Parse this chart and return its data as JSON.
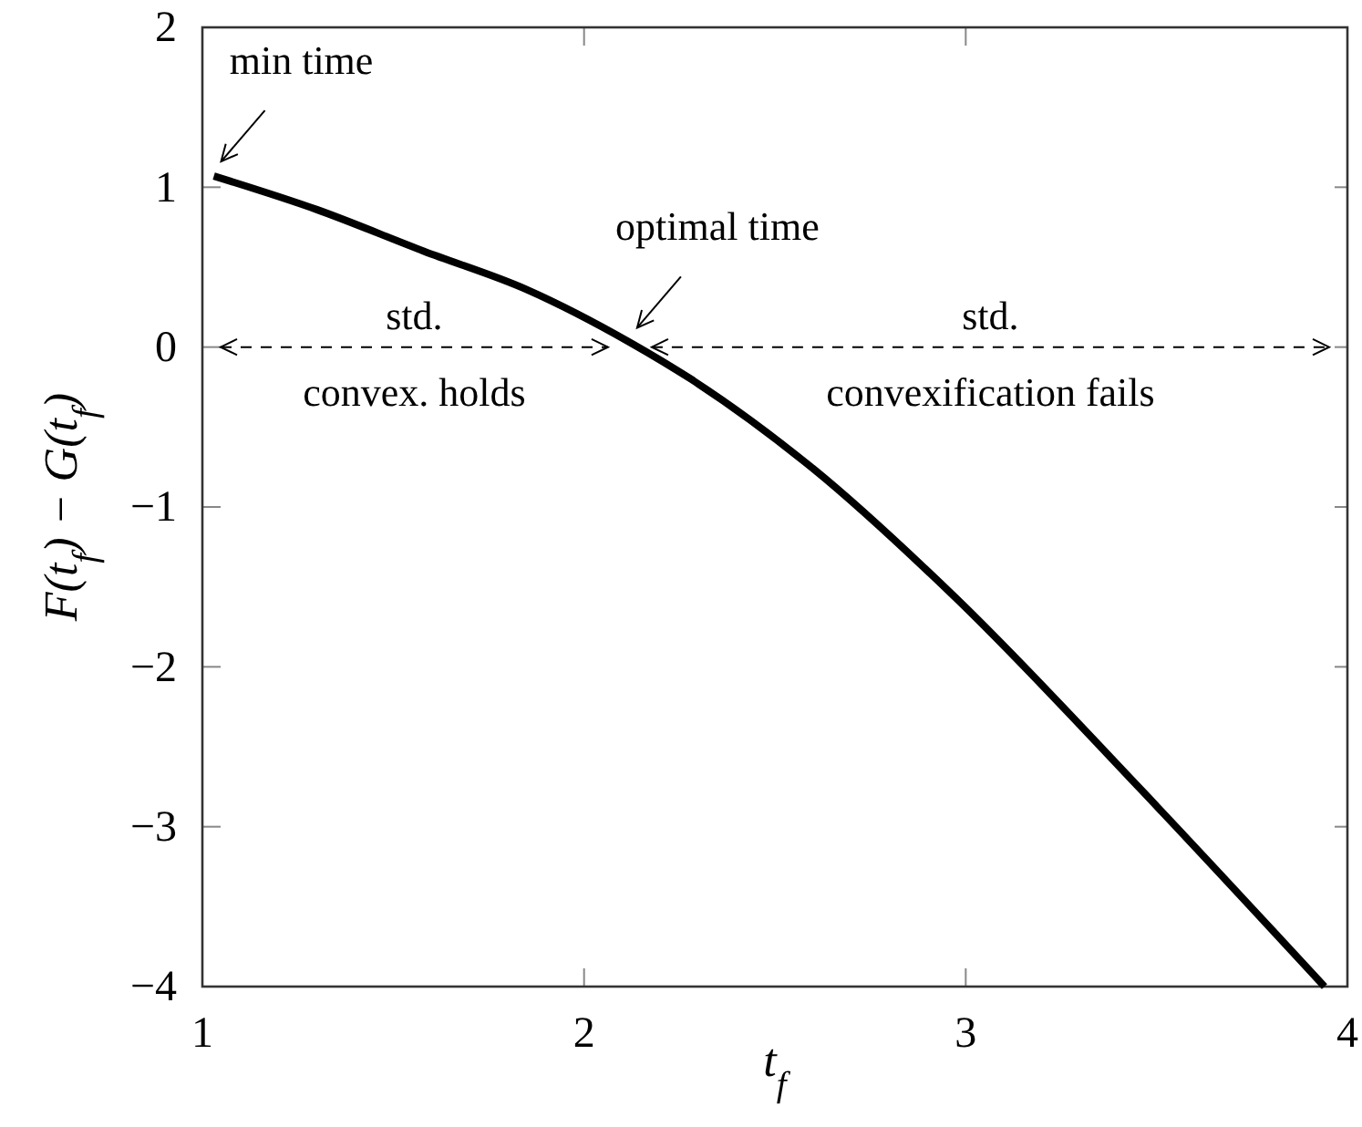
{
  "chart_data": {
    "type": "line",
    "xlabel": "t$_{f}$",
    "ylabel": "F(t$_{f}$) − G(t$_{f}$)",
    "xlim": [
      1,
      4
    ],
    "ylim": [
      -4,
      2
    ],
    "xticks": [
      1,
      2,
      3,
      4
    ],
    "yticks": [
      -4,
      -3,
      -2,
      -1,
      0,
      1,
      2
    ],
    "series": [
      {
        "color": "#000000",
        "x": [
          1.03,
          1.3,
          1.58,
          1.85,
          2.12,
          2.28,
          2.6,
          2.97,
          3.46,
          3.94
        ],
        "values": [
          1.07,
          0.86,
          0.6,
          0.36,
          0.03,
          -0.2,
          -0.76,
          -1.56,
          -2.77,
          -4.0
        ]
      }
    ],
    "annotations": [
      {
        "text": "min time",
        "x": 1.03,
        "y": 1.07
      },
      {
        "text": "optimal time",
        "x": 2.12,
        "y": 0.03
      },
      "std.\nconvex. holds",
      "std.\nconvexification fails"
    ],
    "marker": "none",
    "line_style": "solid"
  }
}
